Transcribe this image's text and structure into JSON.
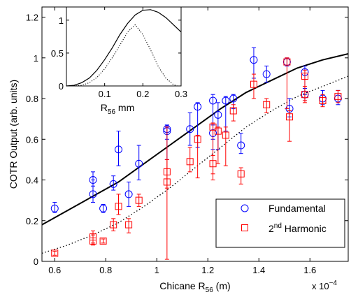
{
  "chart_data": [
    {
      "type": "scatter",
      "title": "",
      "xlabel": "Chicane R",
      "xlabel_sub": "56",
      "xlabel_unit": " (m)",
      "x_exponent_label": "x 10",
      "x_exponent_power": "−4",
      "ylabel": "COTR Output (arb. units)",
      "xlim": [
        0.55,
        1.75
      ],
      "ylim": [
        0,
        1.25
      ],
      "xticks": [
        0.6,
        0.8,
        1,
        1.2,
        1.4,
        1.6
      ],
      "xtick_labels": [
        "0.6",
        "0.8",
        "1",
        "1.2",
        "1.4",
        "1.6"
      ],
      "yticks": [
        0,
        0.2,
        0.4,
        0.6,
        0.8,
        1,
        1.2
      ],
      "ytick_labels": [
        "0",
        "0.2",
        "0.4",
        "0.6",
        "0.8",
        "1",
        "1.2"
      ],
      "grid": false,
      "legend_position": "bottom-right",
      "series": [
        {
          "name": "Fundamental",
          "marker": "circle",
          "color": "#0000ff",
          "points": [
            {
              "x": 0.6,
              "y": 0.26,
              "lo": 0.24,
              "hi": 0.29
            },
            {
              "x": 0.75,
              "y": 0.4,
              "lo": 0.37,
              "hi": 0.44
            },
            {
              "x": 0.75,
              "y": 0.33,
              "lo": 0.29,
              "hi": 0.4
            },
            {
              "x": 0.79,
              "y": 0.26,
              "lo": 0.24,
              "hi": 0.28
            },
            {
              "x": 0.83,
              "y": 0.38,
              "lo": 0.35,
              "hi": 0.42
            },
            {
              "x": 0.85,
              "y": 0.55,
              "lo": 0.47,
              "hi": 0.64
            },
            {
              "x": 0.89,
              "y": 0.33,
              "lo": 0.27,
              "hi": 0.39
            },
            {
              "x": 0.93,
              "y": 0.48,
              "lo": 0.4,
              "hi": 0.57
            },
            {
              "x": 1.04,
              "y": 0.64,
              "lo": 0.6,
              "hi": 0.67
            },
            {
              "x": 1.04,
              "y": 0.65,
              "lo": 0.5,
              "hi": 0.67
            },
            {
              "x": 1.13,
              "y": 0.65,
              "lo": 0.57,
              "hi": 0.73
            },
            {
              "x": 1.16,
              "y": 0.76,
              "lo": 0.56,
              "hi": 0.78
            },
            {
              "x": 1.22,
              "y": 0.79,
              "lo": 0.6,
              "hi": 0.82
            },
            {
              "x": 1.22,
              "y": 0.63,
              "lo": 0.55,
              "hi": 0.67
            },
            {
              "x": 1.24,
              "y": 0.72,
              "lo": 0.55,
              "hi": 0.78
            },
            {
              "x": 1.27,
              "y": 0.79,
              "lo": 0.64,
              "hi": 0.81
            },
            {
              "x": 1.3,
              "y": 0.8,
              "lo": 0.75,
              "hi": 0.82
            },
            {
              "x": 1.33,
              "y": 0.57,
              "lo": 0.53,
              "hi": 0.63
            },
            {
              "x": 1.38,
              "y": 0.99,
              "lo": 0.9,
              "hi": 1.05
            },
            {
              "x": 1.43,
              "y": 0.92,
              "lo": 0.88,
              "hi": 0.96
            },
            {
              "x": 1.51,
              "y": 0.98,
              "lo": 0.96,
              "hi": 1.0
            },
            {
              "x": 1.52,
              "y": 0.75,
              "lo": 0.71,
              "hi": 0.8
            },
            {
              "x": 1.58,
              "y": 0.93,
              "lo": 0.82,
              "hi": 0.96
            },
            {
              "x": 1.58,
              "y": 0.82,
              "lo": 0.79,
              "hi": 0.85
            },
            {
              "x": 1.65,
              "y": 0.8,
              "lo": 0.77,
              "hi": 0.84
            },
            {
              "x": 1.71,
              "y": 0.8,
              "lo": 0.77,
              "hi": 0.84
            }
          ]
        },
        {
          "name": "2nd Harmonic",
          "name_base": "2",
          "name_sup": "nd",
          "name_rest": " Harmonic",
          "marker": "square",
          "color": "#ff0000",
          "points": [
            {
              "x": 0.6,
              "y": 0.04,
              "lo": 0.03,
              "hi": 0.05
            },
            {
              "x": 0.75,
              "y": 0.12,
              "lo": 0.09,
              "hi": 0.15
            },
            {
              "x": 0.75,
              "y": 0.1,
              "lo": 0.08,
              "hi": 0.13
            },
            {
              "x": 0.79,
              "y": 0.1,
              "lo": 0.09,
              "hi": 0.11
            },
            {
              "x": 0.83,
              "y": 0.18,
              "lo": 0.15,
              "hi": 0.21
            },
            {
              "x": 0.85,
              "y": 0.27,
              "lo": 0.23,
              "hi": 0.33
            },
            {
              "x": 0.89,
              "y": 0.18,
              "lo": 0.14,
              "hi": 0.21
            },
            {
              "x": 0.93,
              "y": 0.3,
              "lo": 0.27,
              "hi": 0.33
            },
            {
              "x": 1.04,
              "y": 0.44,
              "lo": 0.01,
              "hi": 0.5
            },
            {
              "x": 1.04,
              "y": 0.39,
              "lo": 0.36,
              "hi": 0.66
            },
            {
              "x": 1.13,
              "y": 0.49,
              "lo": 0.44,
              "hi": 0.56
            },
            {
              "x": 1.16,
              "y": 0.6,
              "lo": 0.41,
              "hi": 0.62
            },
            {
              "x": 1.22,
              "y": 0.66,
              "lo": 0.4,
              "hi": 0.68
            },
            {
              "x": 1.22,
              "y": 0.48,
              "lo": 0.43,
              "hi": 0.52
            },
            {
              "x": 1.24,
              "y": 0.64,
              "lo": 0.48,
              "hi": 0.66
            },
            {
              "x": 1.27,
              "y": 0.62,
              "lo": 0.47,
              "hi": 0.66
            },
            {
              "x": 1.3,
              "y": 0.74,
              "lo": 0.69,
              "hi": 0.77
            },
            {
              "x": 1.33,
              "y": 0.43,
              "lo": 0.38,
              "hi": 0.46
            },
            {
              "x": 1.38,
              "y": 0.87,
              "lo": 0.8,
              "hi": 0.92
            },
            {
              "x": 1.43,
              "y": 0.77,
              "lo": 0.73,
              "hi": 0.8
            },
            {
              "x": 1.51,
              "y": 0.98,
              "lo": 0.75,
              "hi": 1.0
            },
            {
              "x": 1.52,
              "y": 0.71,
              "lo": 0.59,
              "hi": 0.74
            },
            {
              "x": 1.58,
              "y": 0.91,
              "lo": 0.79,
              "hi": 0.94
            },
            {
              "x": 1.58,
              "y": 0.82,
              "lo": 0.78,
              "hi": 0.86
            },
            {
              "x": 1.65,
              "y": 0.79,
              "lo": 0.76,
              "hi": 0.82
            },
            {
              "x": 1.71,
              "y": 0.81,
              "lo": 0.78,
              "hi": 0.84
            }
          ]
        },
        {
          "type": "line",
          "style": "solid",
          "color": "#000000",
          "x": [
            0.55,
            0.65,
            0.75,
            0.85,
            0.95,
            1.05,
            1.15,
            1.25,
            1.35,
            1.45,
            1.55,
            1.65,
            1.75
          ],
          "y": [
            0.18,
            0.25,
            0.32,
            0.39,
            0.48,
            0.57,
            0.66,
            0.75,
            0.83,
            0.89,
            0.95,
            0.99,
            1.02
          ]
        },
        {
          "type": "line",
          "style": "dotted",
          "color": "#000000",
          "x": [
            0.55,
            0.65,
            0.75,
            0.85,
            0.95,
            1.05,
            1.15,
            1.25,
            1.35,
            1.45,
            1.55,
            1.65,
            1.75
          ],
          "y": [
            0.04,
            0.08,
            0.13,
            0.19,
            0.27,
            0.36,
            0.46,
            0.56,
            0.66,
            0.74,
            0.81,
            0.86,
            0.91
          ]
        }
      ]
    },
    {
      "type": "line",
      "title": "",
      "xlabel": "R",
      "xlabel_sub": "56",
      "xlabel_unit": " mm",
      "ylabel": "",
      "xlim": [
        0,
        0.3
      ],
      "ylim": [
        0,
        1.2
      ],
      "xticks": [
        0.1,
        0.2,
        0.3
      ],
      "xtick_labels": [
        "0.1",
        "0.2",
        "0.3"
      ],
      "yticks": [
        0,
        0.5,
        1
      ],
      "ytick_labels": [
        "0",
        "0.5",
        "1"
      ],
      "series": [
        {
          "style": "solid",
          "color": "#000000",
          "x": [
            0,
            0.02,
            0.04,
            0.06,
            0.08,
            0.1,
            0.12,
            0.14,
            0.16,
            0.18,
            0.2,
            0.22,
            0.24,
            0.26,
            0.28,
            0.3
          ],
          "y": [
            0,
            0.01,
            0.05,
            0.12,
            0.24,
            0.4,
            0.58,
            0.78,
            0.95,
            1.08,
            1.15,
            1.16,
            1.12,
            1.04,
            0.93,
            0.82
          ]
        },
        {
          "style": "dotted",
          "color": "#000000",
          "x": [
            0,
            0.02,
            0.04,
            0.06,
            0.08,
            0.1,
            0.12,
            0.14,
            0.16,
            0.18,
            0.2,
            0.22,
            0.24,
            0.26,
            0.28,
            0.29
          ],
          "y": [
            0,
            0.0,
            0.01,
            0.05,
            0.13,
            0.26,
            0.43,
            0.62,
            0.82,
            0.93,
            0.78,
            0.55,
            0.3,
            0.12,
            0.02,
            0.0
          ]
        }
      ]
    }
  ]
}
